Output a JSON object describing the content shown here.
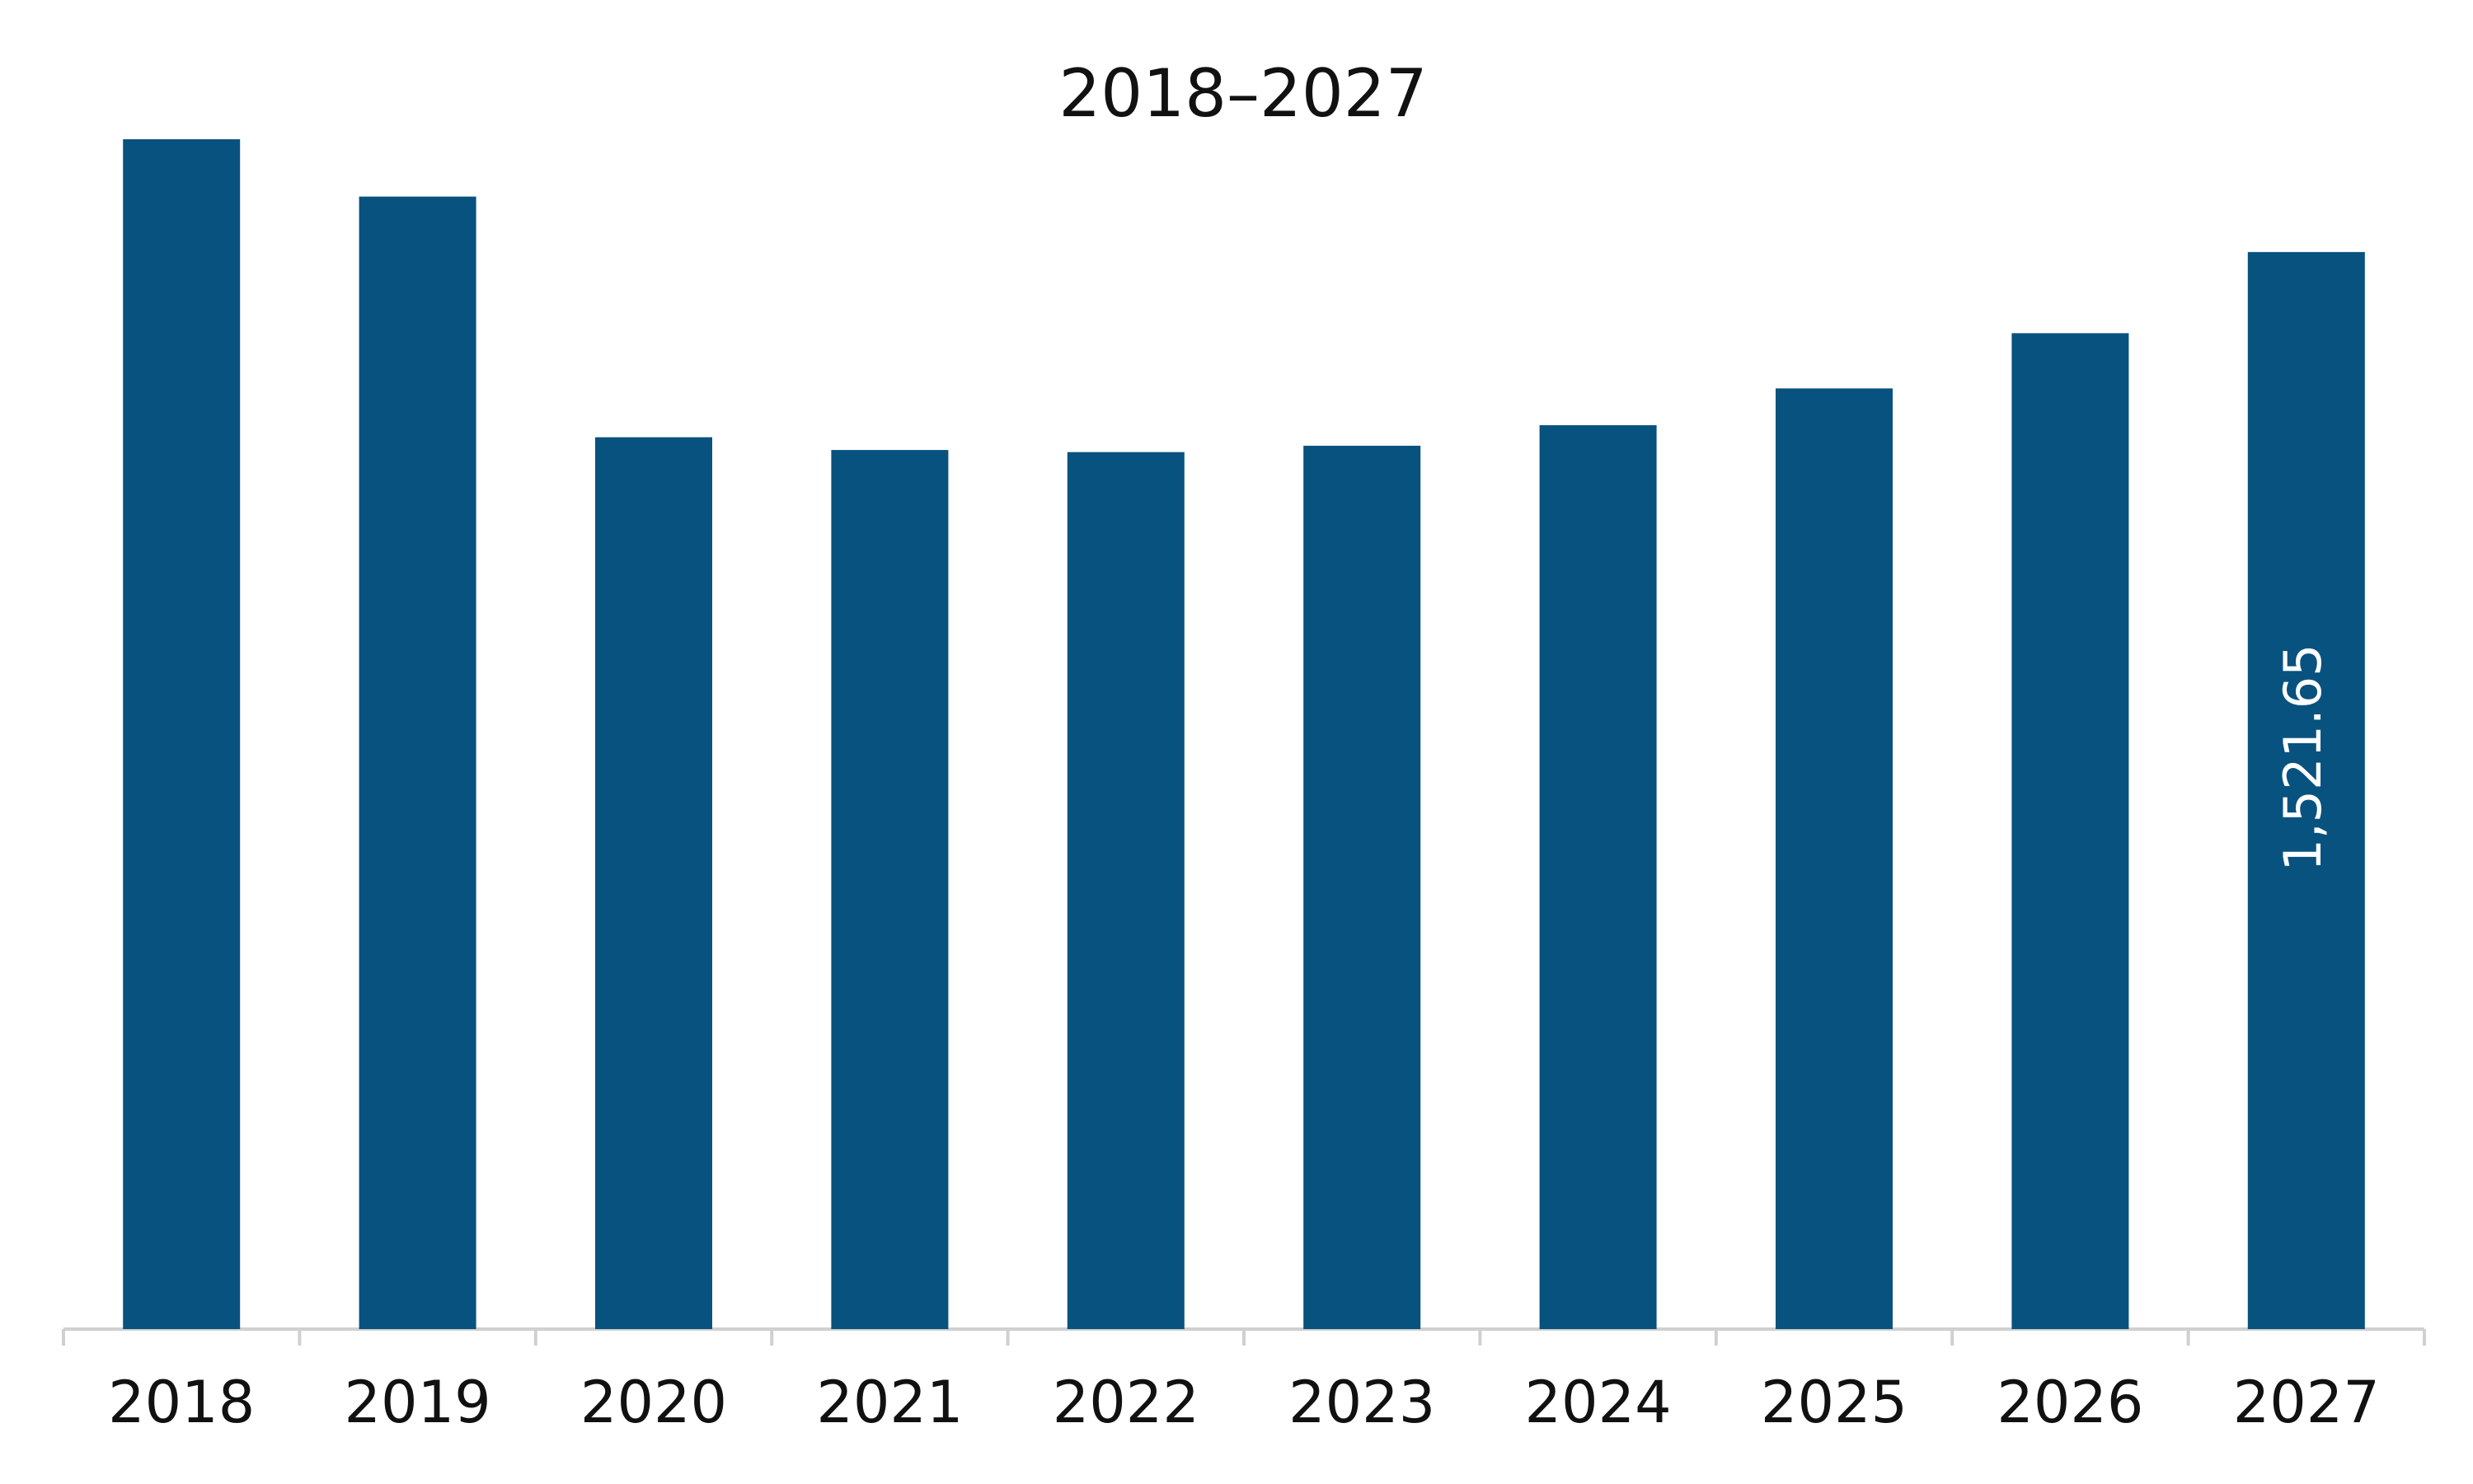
{
  "chart_data": {
    "type": "bar",
    "title": "2018–2027",
    "categories": [
      "2018",
      "2019",
      "2020",
      "2021",
      "2022",
      "2023",
      "2024",
      "2025",
      "2026",
      "2027"
    ],
    "values": [
      1681,
      1600,
      1260,
      1242,
      1239,
      1248,
      1277,
      1329,
      1407,
      1521.65
    ],
    "value_labels": [
      null,
      null,
      null,
      null,
      null,
      null,
      null,
      null,
      null,
      "1,521.65"
    ],
    "color": "#08527f"
  }
}
